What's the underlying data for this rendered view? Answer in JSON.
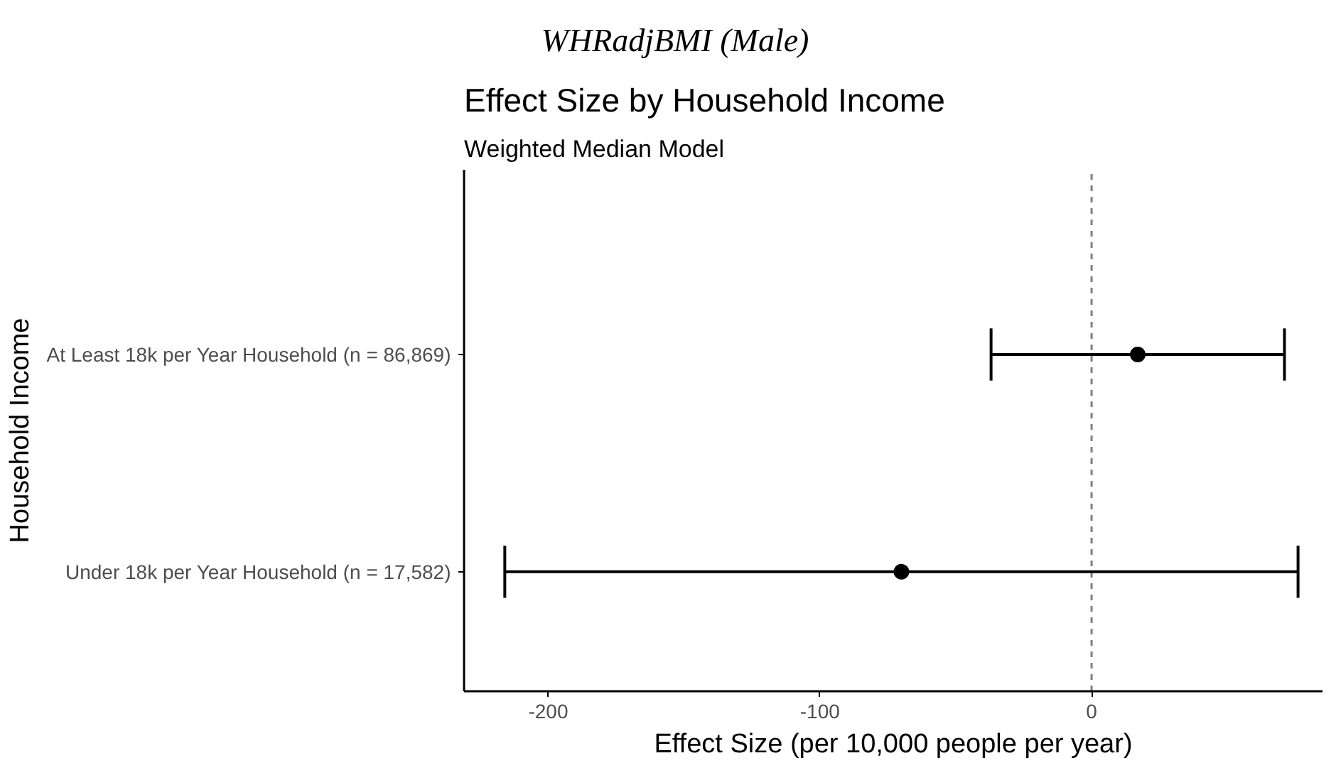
{
  "chart_data": {
    "type": "scatter",
    "orientation": "horizontal",
    "title": "Effect Size by Household Income",
    "subtitle": "Weighted Median Model",
    "xlabel": "Effect Size (per 10,000 people per year)",
    "ylabel": "Household Income",
    "annotations": [
      "WHRadjBMI (Male)"
    ],
    "categories": [
      "At Least 18k per Year Household (n = 86,869)",
      "Under 18k per Year Household (n = 17,582)"
    ],
    "values": [
      17,
      -70
    ],
    "errors": [
      [
        -37,
        71
      ],
      [
        -216,
        76
      ]
    ],
    "color": "#000000",
    "marker": "circle",
    "xlim": [
      -231,
      85
    ],
    "xticks": [
      -200,
      -100,
      0
    ],
    "grid": false,
    "ref_lines": [
      {
        "axis": "x",
        "value": 0,
        "label": null,
        "color": "#808080",
        "line_style": "dashed"
      }
    ]
  }
}
